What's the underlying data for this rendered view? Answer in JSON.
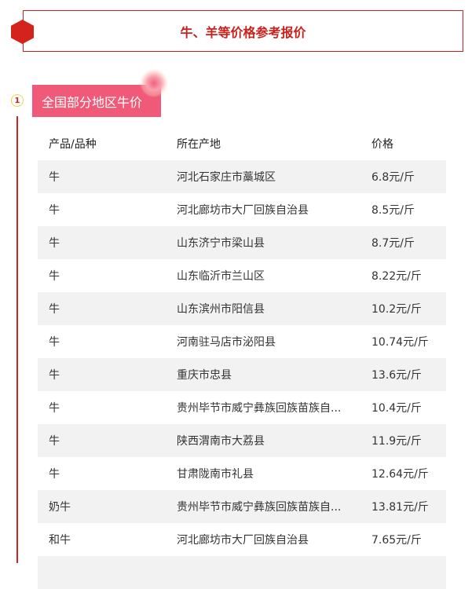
{
  "title": "牛、羊等价格参考报价",
  "section": {
    "number": "1",
    "title": "全国部分地区牛价"
  },
  "table": {
    "headers": [
      "产品/品种",
      "所在产地",
      "价格"
    ],
    "rows": [
      [
        "牛",
        "河北石家庄市藁城区",
        "6.8元/斤"
      ],
      [
        "牛",
        "河北廊坊市大厂回族自治县",
        "8.5元/斤"
      ],
      [
        "牛",
        "山东济宁市梁山县",
        "8.7元/斤"
      ],
      [
        "牛",
        "山东临沂市兰山区",
        "8.22元/斤"
      ],
      [
        "牛",
        "山东滨州市阳信县",
        "10.2元/斤"
      ],
      [
        "牛",
        "河南驻马店市泌阳县",
        "10.74元/斤"
      ],
      [
        "牛",
        "重庆市忠县",
        "13.6元/斤"
      ],
      [
        "牛",
        "贵州毕节市威宁彝族回族苗族自...",
        "10.4元/斤"
      ],
      [
        "牛",
        "陕西渭南市大荔县",
        "11.9元/斤"
      ],
      [
        "牛",
        "甘肃陇南市礼县",
        "12.64元/斤"
      ],
      [
        "奶牛",
        "贵州毕节市威宁彝族回族苗族自...",
        "13.81元/斤"
      ],
      [
        "和牛",
        "河北廊坊市大厂回族自治县",
        "7.65元/斤"
      ]
    ]
  },
  "colors": {
    "accent": "#c8221e",
    "section_bg": "#f05a78",
    "row_alt": "#f2f2f2"
  }
}
